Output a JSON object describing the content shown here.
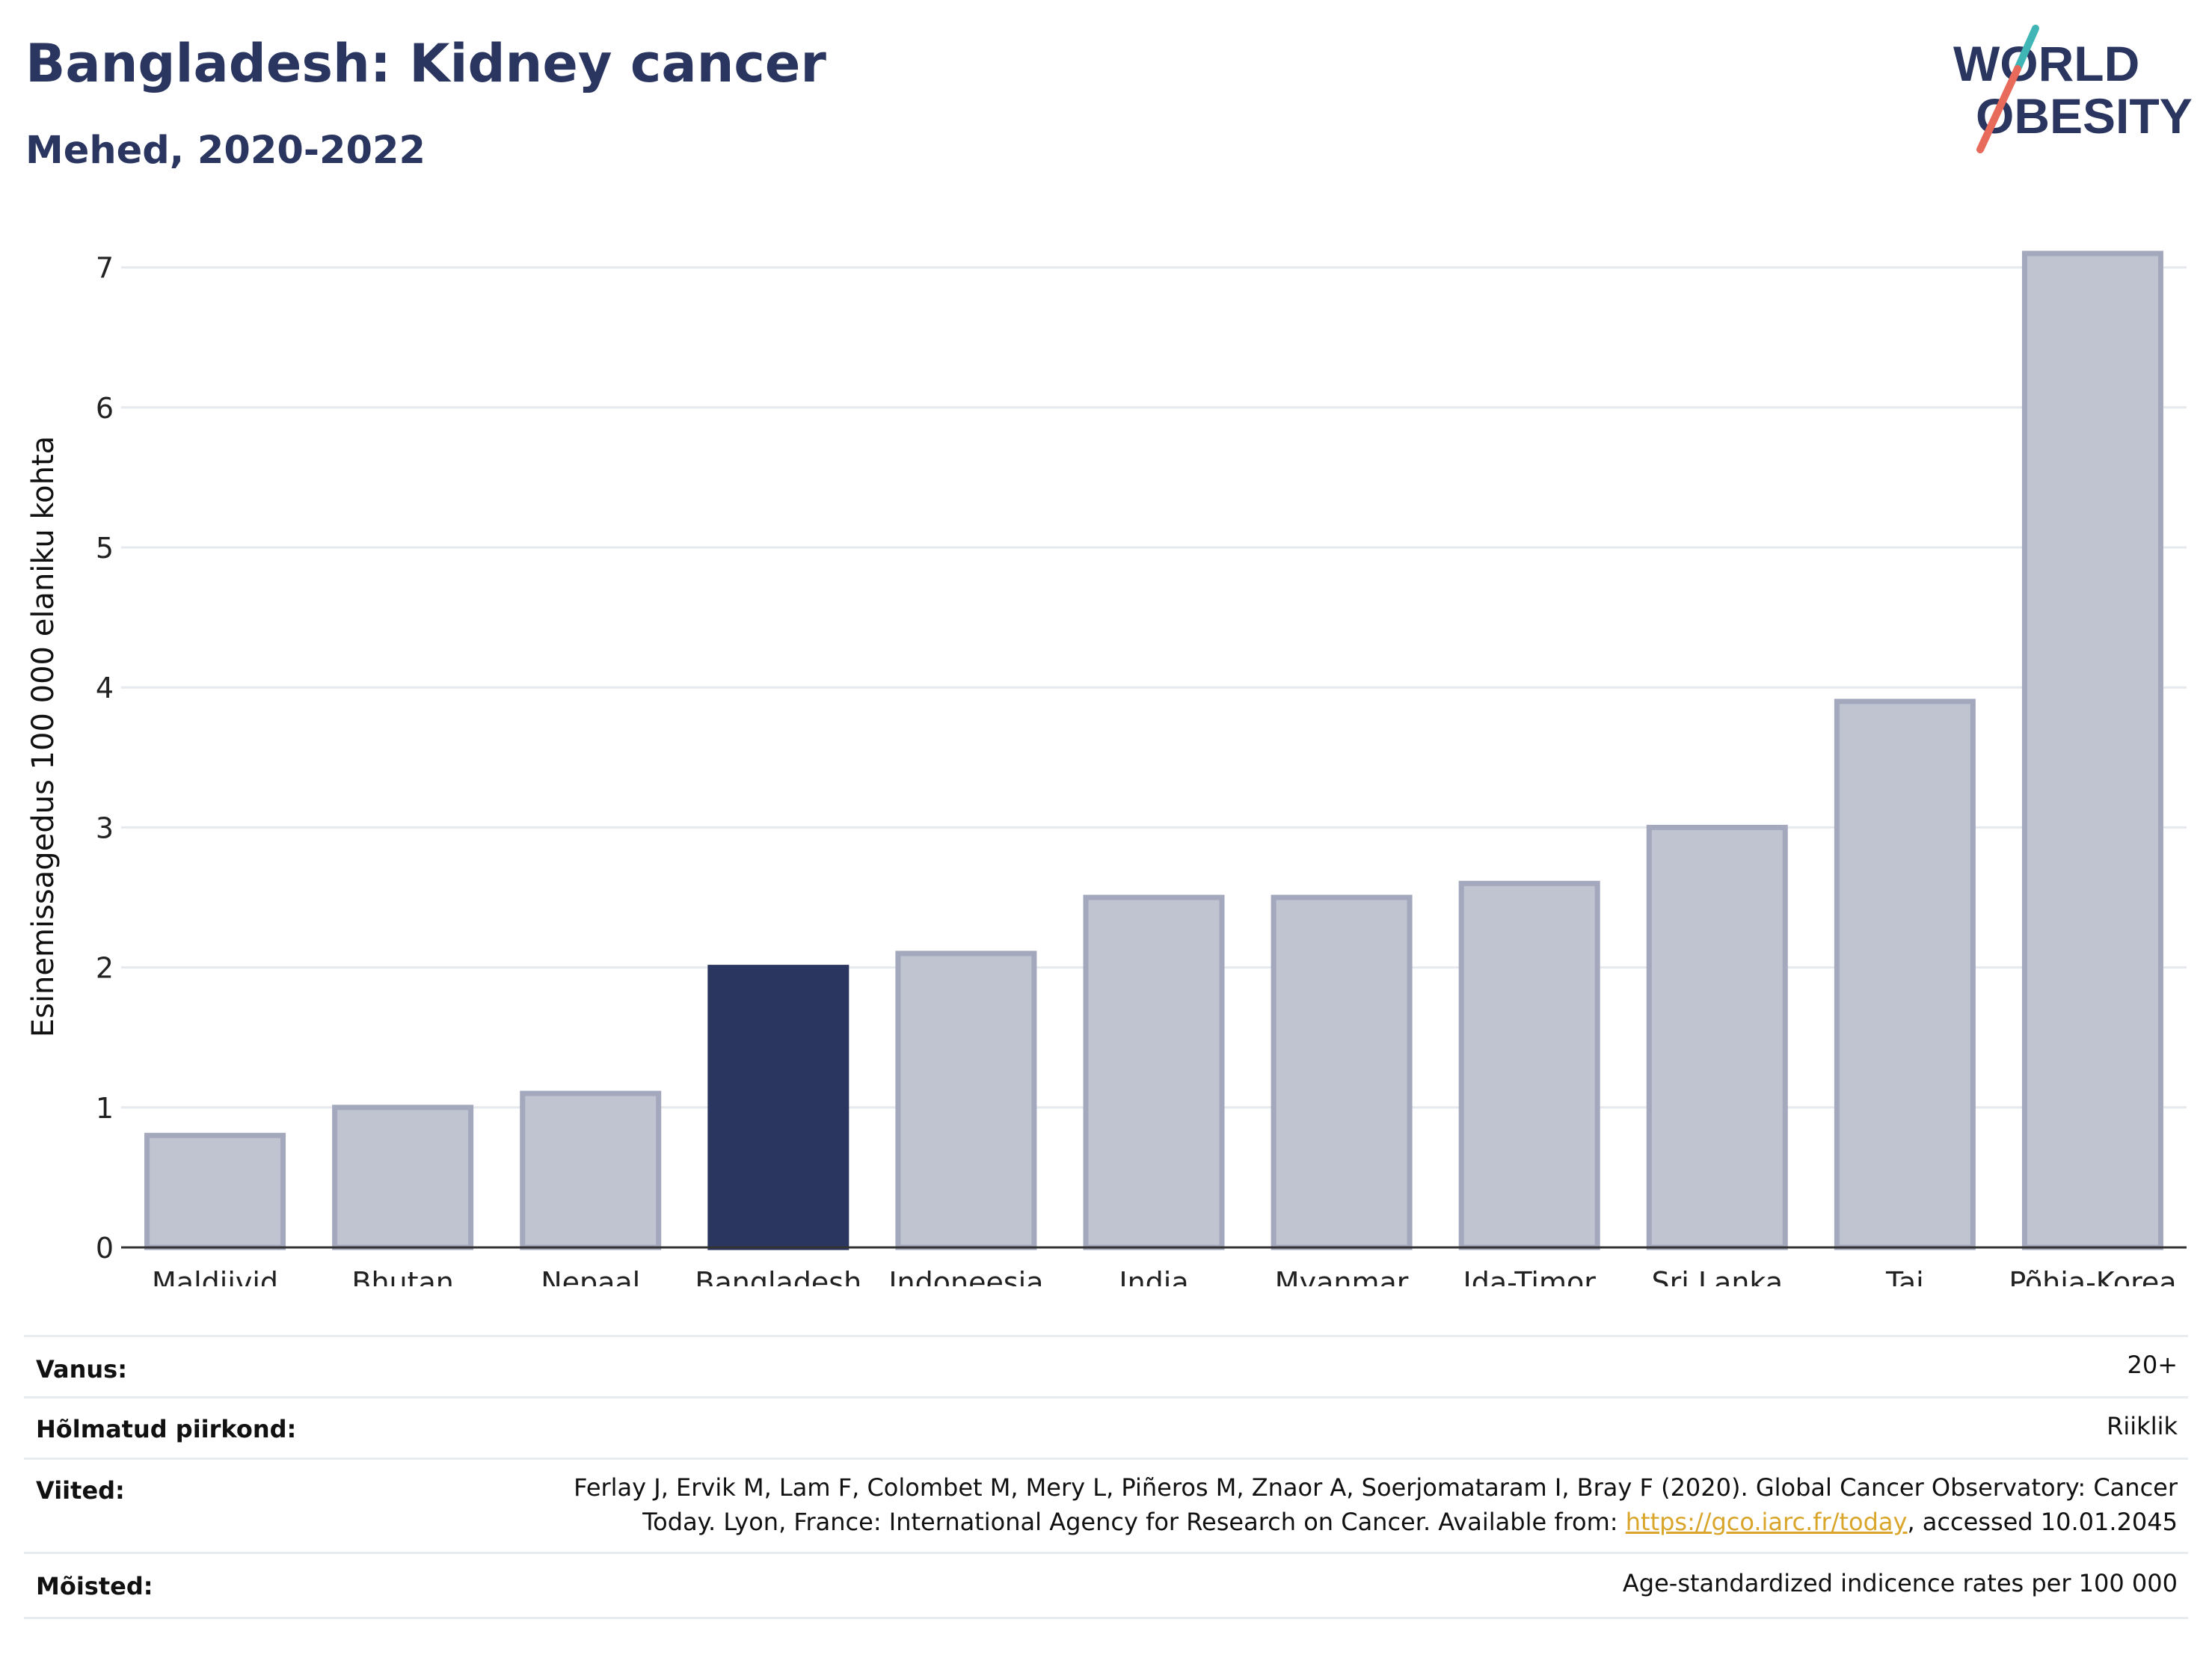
{
  "header": {
    "title": "Bangladesh: Kidney cancer",
    "subtitle": "Mehed, 2020-2022",
    "logo_line1": "WORLD",
    "logo_line2": "OBESITY"
  },
  "chart_data": {
    "type": "bar",
    "title": "Bangladesh: Kidney cancer",
    "subtitle": "Mehed, 2020-2022",
    "xlabel": "",
    "ylabel": "Esinemissagedus 100 000 elaniku kohta",
    "categories": [
      "Maldiivid",
      "Bhutan",
      "Nepaal",
      "Bangladesh",
      "Indoneesia",
      "India",
      "Myanmar",
      "Ida-Timor",
      "Sri Lanka",
      "Tai",
      "Põhja-Korea"
    ],
    "values": [
      0.8,
      1.0,
      1.1,
      2.0,
      2.1,
      2.5,
      2.5,
      2.6,
      3.0,
      3.9,
      7.1
    ],
    "highlight": "Bangladesh",
    "ylim": [
      0,
      7.4
    ],
    "yticks": [
      0,
      1,
      2,
      3,
      4,
      5,
      6,
      7
    ],
    "grid": true,
    "colors": {
      "bar": "#c0c3d0",
      "bar_border": "#a3a8bd",
      "highlight": "#2a3660"
    }
  },
  "info": {
    "age_label": "Vanus:",
    "age_value": "20+",
    "region_label": "Hõlmatud piirkond:",
    "region_value": "Riiklik",
    "refs_label": "Viited:",
    "refs_line1": "Ferlay J, Ervik M, Lam F, Colombet M, Mery L, Piñeros M, Znaor A, Soerjomataram I, Bray F (2020). Global Cancer Observatory: Cancer",
    "refs_line2_pre": "Today. Lyon, France: International Agency for Research on Cancer. Available from: ",
    "refs_link": "https://gco.iarc.fr/today",
    "refs_line2_post": ", accessed 10.01.2045",
    "defs_label": "Mõisted:",
    "defs_value": "Age-standardized indicence rates per 100 000"
  }
}
